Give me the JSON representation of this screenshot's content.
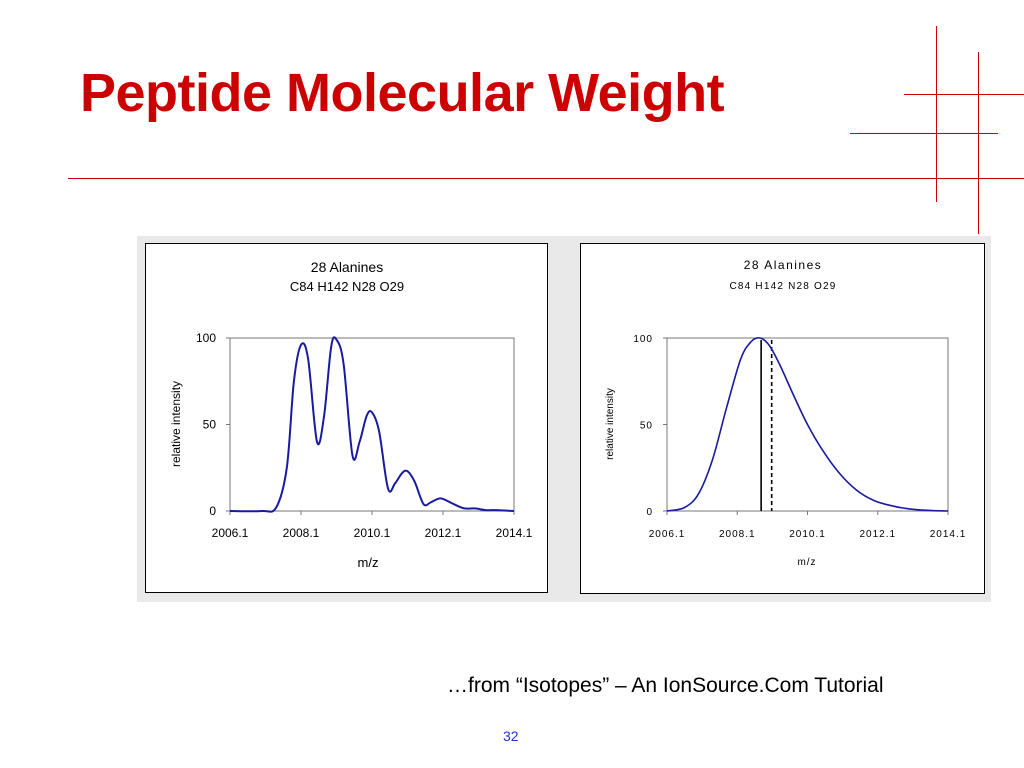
{
  "slide": {
    "title": "Peptide Molecular Weight",
    "caption": "…from “Isotopes” – An IonSource.Com Tutorial",
    "page_number": "32",
    "accent_color": "#cc0000",
    "page_number_color": "#2233cc"
  },
  "chart_data": [
    {
      "type": "line",
      "title": "28 Alanines",
      "subtitle": "C84 H142 N28 O29",
      "xlabel": "m/z",
      "ylabel": "relative intensity",
      "xlim": [
        2006.1,
        2014.1
      ],
      "ylim": [
        0,
        100
      ],
      "xticks": [
        "2006.1",
        "2008.1",
        "2010.1",
        "2012.1",
        "2014.1"
      ],
      "yticks": [
        "0",
        "50",
        "100"
      ],
      "grid": false,
      "line_color": "#1a1aa0",
      "x": [
        2006.1,
        2007.0,
        2007.4,
        2007.7,
        2007.9,
        2008.1,
        2008.3,
        2008.55,
        2008.75,
        2008.95,
        2009.1,
        2009.3,
        2009.55,
        2009.75,
        2009.95,
        2010.1,
        2010.3,
        2010.55,
        2010.75,
        2010.95,
        2011.1,
        2011.3,
        2011.55,
        2011.75,
        2011.95,
        2012.1,
        2012.4,
        2012.7,
        2013.0,
        2013.3,
        2013.6,
        2014.1
      ],
      "y": [
        0,
        0,
        2,
        25,
        75,
        96,
        88,
        40,
        55,
        95,
        99,
        85,
        32,
        40,
        55,
        57,
        46,
        13,
        16,
        22,
        23,
        17,
        4,
        5,
        7,
        7,
        4,
        1.5,
        1.5,
        0.5,
        0.5,
        0
      ]
    },
    {
      "type": "line",
      "title": "28 Alanines",
      "subtitle": "C84 H142 N28 O29",
      "xlabel": "m/z",
      "ylabel": "relative intensity",
      "xlim": [
        2006.1,
        2014.1
      ],
      "ylim": [
        0,
        100
      ],
      "xticks": [
        "2006.1",
        "2008.1",
        "2010.1",
        "2012.1",
        "2014.1"
      ],
      "yticks": [
        "0",
        "50",
        "100"
      ],
      "grid": false,
      "line_color": "#1a1aa0",
      "x": [
        2006.1,
        2006.6,
        2007.0,
        2007.4,
        2007.8,
        2008.2,
        2008.5,
        2008.75,
        2009.0,
        2009.3,
        2009.7,
        2010.1,
        2010.5,
        2011.0,
        2011.5,
        2012.0,
        2012.5,
        2013.0,
        2013.5,
        2014.1
      ],
      "y": [
        0,
        2,
        10,
        30,
        60,
        88,
        98,
        100,
        96,
        85,
        67,
        50,
        36,
        22,
        12,
        6,
        3,
        1.2,
        0.4,
        0
      ],
      "markers": [
        {
          "x": 2008.78,
          "style": "solid"
        },
        {
          "x": 2009.08,
          "style": "dashed"
        }
      ]
    }
  ]
}
